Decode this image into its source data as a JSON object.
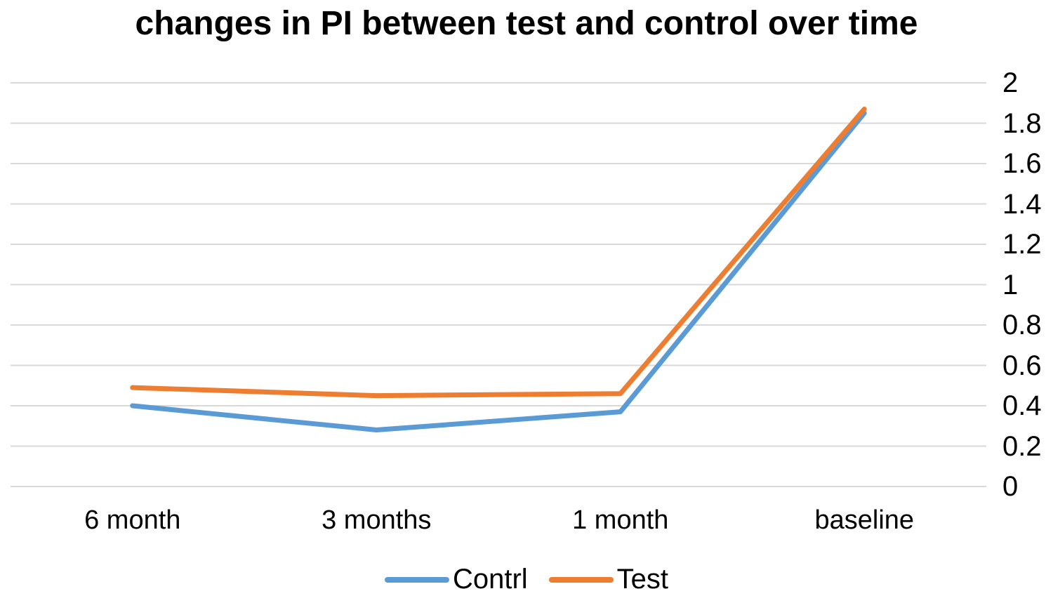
{
  "title": "changes in PI between test and control over time",
  "colors": {
    "background": "#ffffff",
    "gridline": "#d9d9d9",
    "text": "#000000",
    "control_blue": "#5b9bd5",
    "test_orange": "#ed7d31"
  },
  "chart_data": {
    "type": "line",
    "title": "changes in PI between test and control over time",
    "categories": [
      "6 month",
      "3 months",
      "1 month",
      "baseline"
    ],
    "series": [
      {
        "name": "Contrl",
        "color": "#5b9bd5",
        "values": [
          0.4,
          0.28,
          0.37,
          1.85
        ]
      },
      {
        "name": "Test",
        "color": "#ed7d31",
        "values": [
          0.49,
          0.45,
          0.46,
          1.87
        ]
      }
    ],
    "xlabel": "",
    "ylabel": "",
    "ylim": [
      0,
      2
    ],
    "yticks": [
      2,
      1.8,
      1.6,
      1.4,
      1.2,
      1,
      0.8,
      0.6,
      0.4,
      0.2,
      0
    ],
    "yaxis_side": "right",
    "grid": true,
    "legend_position": "bottom"
  }
}
